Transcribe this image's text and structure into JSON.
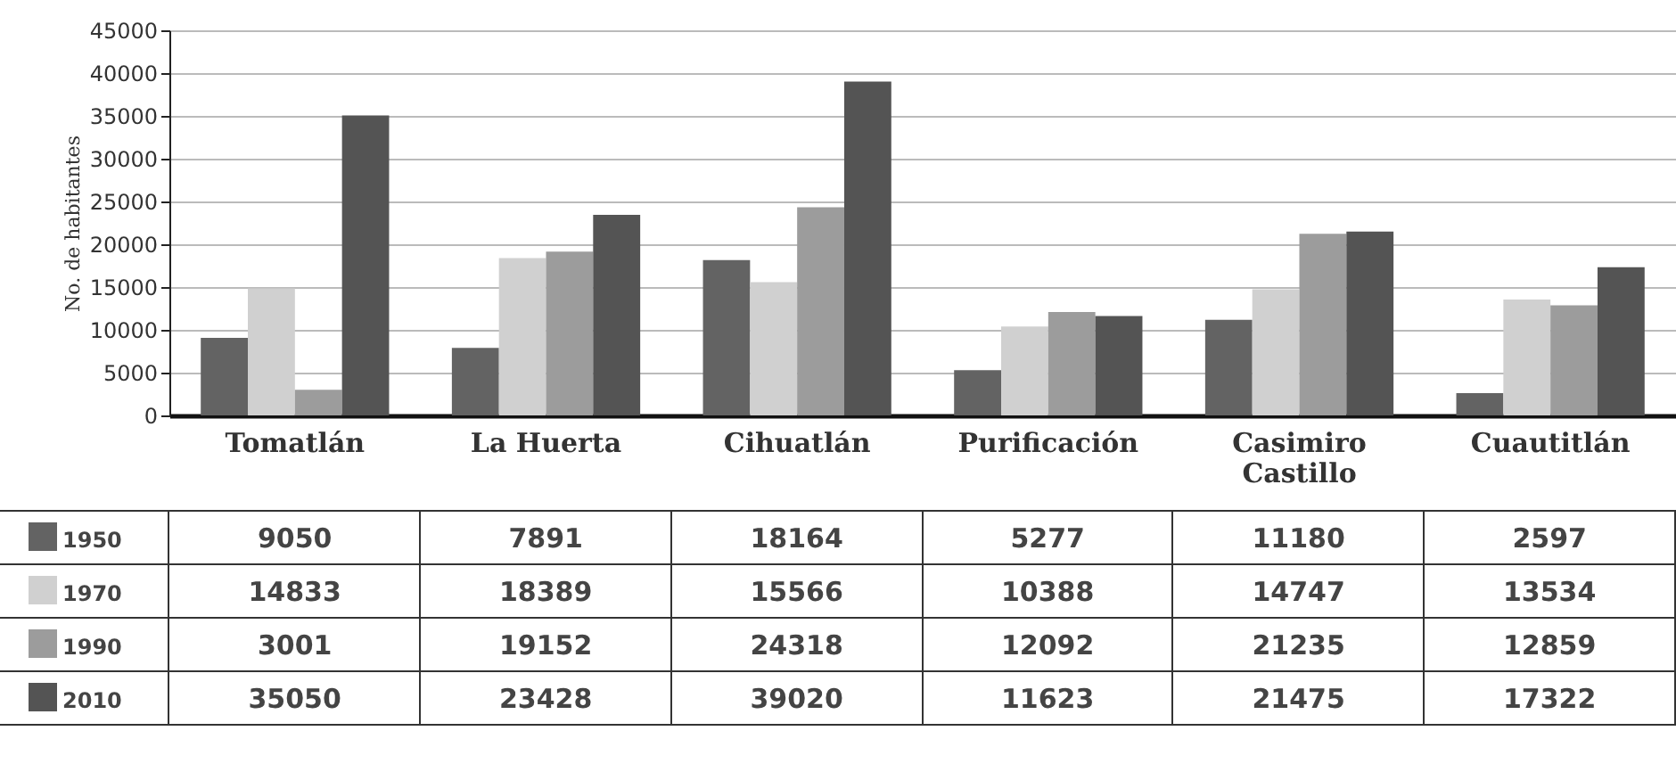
{
  "chart_data": {
    "type": "bar",
    "ylabel": "No. de habitantes",
    "categories": [
      "Tomatlán",
      "La Huerta",
      "Cihuatlán",
      "Purificación",
      "Casimiro Castillo",
      "Cuautitlán"
    ],
    "series": [
      {
        "name": "1950",
        "color": "#636363",
        "values": [
          9050,
          7891,
          18164,
          5277,
          11180,
          2597
        ]
      },
      {
        "name": "1970",
        "color": "#d0d0d0",
        "values": [
          14833,
          18389,
          15566,
          10388,
          14747,
          13534
        ]
      },
      {
        "name": "1990",
        "color": "#9c9c9c",
        "values": [
          3001,
          19152,
          24318,
          12092,
          21235,
          12859
        ]
      },
      {
        "name": "2010",
        "color": "#545454",
        "values": [
          35050,
          23428,
          39020,
          11623,
          21475,
          17322
        ]
      }
    ],
    "ylim": [
      0,
      45000
    ],
    "yticks": [
      0,
      5000,
      10000,
      15000,
      20000,
      25000,
      30000,
      35000,
      40000,
      45000
    ],
    "grid": "y",
    "legend": "bottom",
    "data_labels": true
  }
}
